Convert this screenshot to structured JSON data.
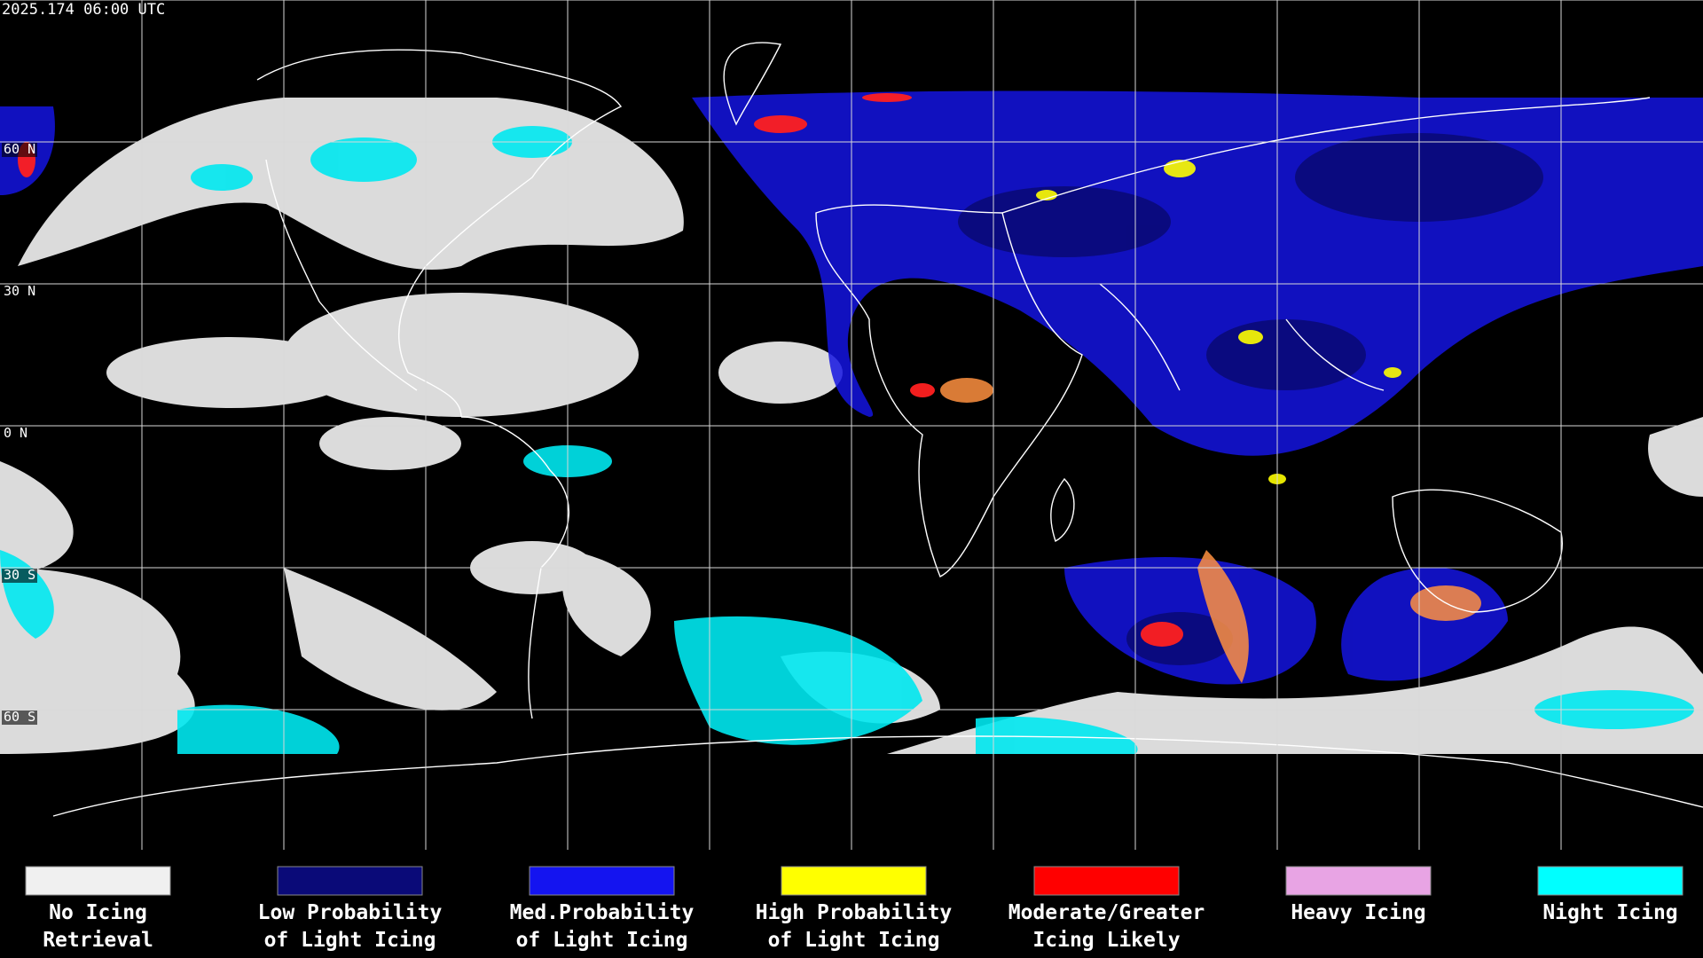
{
  "header": {
    "timestamp": "2025.174 06:00 UTC"
  },
  "map": {
    "latitude_labels": [
      "60 N",
      "30 N",
      "0 N",
      "30 S",
      "60 S"
    ]
  },
  "legend": [
    {
      "lines": [
        "No Icing",
        "Retrieval"
      ],
      "color": "#f0f0f0"
    },
    {
      "lines": [
        "Low Probability",
        "of Light Icing"
      ],
      "color": "#0a0a78"
    },
    {
      "lines": [
        "Med.Probability",
        "of Light Icing"
      ],
      "color": "#1414f0"
    },
    {
      "lines": [
        "High Probability",
        "of Light Icing"
      ],
      "color": "#ffff00"
    },
    {
      "lines": [
        "Moderate/Greater",
        "Icing Likely"
      ],
      "color": "#ff0000"
    },
    {
      "lines": [
        "Heavy Icing"
      ],
      "color": "#e8a4e4"
    },
    {
      "lines": [
        "Night Icing"
      ],
      "color": "#00ffff"
    }
  ]
}
